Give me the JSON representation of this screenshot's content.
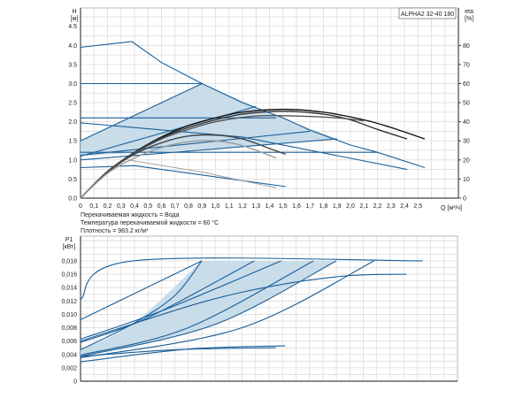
{
  "chart_data": [
    {
      "type": "line",
      "title": "ALPHA2 32-40 180",
      "xlabel": "Q [м³/ч]",
      "ylabel": "H [м]",
      "ylabel_parts": [
        "H",
        "[м]"
      ],
      "y2label_parts": [
        "eta",
        "[%]"
      ],
      "xlim": [
        0,
        2.8
      ],
      "ylim": [
        0,
        4.98
      ],
      "y2lim": [
        0,
        99.6
      ],
      "grid": true,
      "x_ticks": [
        "0",
        "0,1",
        "0,2",
        "0,3",
        "0,4",
        "0,5",
        "0,6",
        "0,7",
        "0,8",
        "0,9",
        "1,0",
        "1,1",
        "1,2",
        "1,3",
        "1,4",
        "1,5",
        "1,6",
        "1,7",
        "1,8",
        "1,9",
        "2,0",
        "2,1",
        "2,2",
        "2,3",
        "2,4",
        "2,5"
      ],
      "y_ticks": [
        "0.0",
        "0.5",
        "1.0",
        "1.5",
        "2.0",
        "2.5",
        "3.0",
        "3.5",
        "4.0",
        "4.5"
      ],
      "y2_ticks": [
        "0",
        "10",
        "20",
        "30",
        "40",
        "50",
        "60",
        "70",
        "80"
      ],
      "shaded_region": [
        [
          0,
          1.5
        ],
        [
          0.9,
          3.0
        ],
        [
          1.42,
          2.2
        ],
        [
          1.9,
          1.55
        ],
        [
          1.0,
          1.3
        ],
        [
          0,
          1.1
        ]
      ],
      "head_curves": [
        [
          [
            0,
            3.95
          ],
          [
            0.38,
            4.1
          ],
          [
            0.6,
            3.55
          ],
          [
            0.9,
            3.0
          ],
          [
            1.2,
            2.5
          ],
          [
            1.5,
            2.1
          ],
          [
            1.7,
            1.78
          ],
          [
            2.0,
            1.39
          ],
          [
            2.2,
            1.2
          ],
          [
            2.55,
            0.8
          ]
        ],
        [
          [
            0,
            3.0
          ],
          [
            0.9,
            3.0
          ]
        ],
        [
          [
            0,
            1.5
          ],
          [
            0.9,
            3.0
          ]
        ],
        [
          [
            0,
            2.1
          ],
          [
            1.45,
            2.1
          ]
        ],
        [
          [
            0,
            1.97
          ],
          [
            1.2,
            1.6
          ],
          [
            2.42,
            0.75
          ]
        ],
        [
          [
            0,
            1.1
          ],
          [
            1.3,
            2.4
          ]
        ],
        [
          [
            0,
            1.2
          ],
          [
            2.2,
            1.2
          ]
        ],
        [
          [
            0,
            1.0
          ],
          [
            1.9,
            1.55
          ]
        ],
        [
          [
            0,
            1.12
          ],
          [
            1.7,
            1.75
          ]
        ],
        [
          [
            0,
            0.8
          ],
          [
            0.4,
            0.85
          ],
          [
            1.52,
            0.3
          ]
        ]
      ],
      "eta_curves": [
        {
          "color": "#111111",
          "points": [
            [
              0,
              0
            ],
            [
              0.2,
              14
            ],
            [
              0.4,
              24
            ],
            [
              0.6,
              32
            ],
            [
              0.8,
              38
            ],
            [
              1.0,
              42
            ],
            [
              1.2,
              45
            ],
            [
              1.5,
              46.5
            ],
            [
              1.8,
              45
            ],
            [
              2.1,
              41
            ],
            [
              2.3,
              37
            ],
            [
              2.55,
              31
            ]
          ]
        },
        {
          "color": "#333333",
          "points": [
            [
              0,
              0
            ],
            [
              0.2,
              14
            ],
            [
              0.4,
              24
            ],
            [
              0.6,
              31.5
            ],
            [
              0.8,
              37
            ],
            [
              1.0,
              41
            ],
            [
              1.2,
              44
            ],
            [
              1.5,
              45.5
            ],
            [
              1.8,
              44
            ],
            [
              2.0,
              41
            ],
            [
              2.2,
              36
            ],
            [
              2.42,
              31
            ]
          ]
        },
        {
          "color": "#555555",
          "points": [
            [
              0,
              0
            ],
            [
              0.2,
              14
            ],
            [
              0.4,
              23.5
            ],
            [
              0.6,
              31
            ],
            [
              0.8,
              36
            ],
            [
              1.0,
              40
            ],
            [
              1.3,
              43
            ],
            [
              1.6,
              43
            ],
            [
              1.9,
              42
            ],
            [
              2.1,
              40.5
            ]
          ]
        },
        {
          "color": "#444444",
          "points": [
            [
              0,
              0
            ],
            [
              0.2,
              13.5
            ],
            [
              0.4,
              23
            ],
            [
              0.6,
              29
            ],
            [
              0.8,
              32.5
            ],
            [
              1.0,
              33
            ],
            [
              1.2,
              31
            ],
            [
              1.4,
              26
            ],
            [
              1.52,
              23
            ]
          ]
        },
        {
          "color": "#999999",
          "points": [
            [
              0,
              0
            ],
            [
              0.2,
              13
            ],
            [
              0.4,
              21
            ],
            [
              0.6,
              26.5
            ],
            [
              0.8,
              29.5
            ],
            [
              1.0,
              30
            ],
            [
              1.2,
              27.5
            ],
            [
              1.45,
              21
            ]
          ]
        }
      ],
      "gray_curve": [
        [
          0.35,
          1.0
        ],
        [
          0.9,
          0.68
        ],
        [
          1.45,
          0.27
        ]
      ]
    },
    {
      "type": "line",
      "ylabel_parts": [
        "P1",
        "[кВт]"
      ],
      "xlim": [
        0,
        2.8
      ],
      "ylim": [
        0,
        0.0217
      ],
      "grid": true,
      "y_ticks": [
        "0",
        "0,002",
        "0,004",
        "0,006",
        "0,008",
        "0,010",
        "0,012",
        "0,014",
        "0,016",
        "0,018"
      ],
      "shaded_region": [
        [
          0,
          0.0047
        ],
        [
          0.39,
          0.0086
        ],
        [
          0.9,
          0.018
        ],
        [
          1.9,
          0.018
        ],
        [
          1.2,
          0.0085
        ],
        [
          0,
          0.0037
        ]
      ],
      "power_curves": [
        [
          [
            0,
            0.0122
          ],
          [
            0.39,
            0.018
          ],
          [
            2.54,
            0.018
          ]
        ],
        [
          [
            0,
            0.0092
          ],
          [
            0.9,
            0.018
          ]
        ],
        [
          [
            0,
            0.0047
          ],
          [
            0.39,
            0.0086
          ],
          [
            0.7,
            0.0128
          ],
          [
            0.9,
            0.018
          ]
        ],
        [
          [
            0,
            0.0058
          ],
          [
            0.5,
            0.0095
          ],
          [
            1.29,
            0.018
          ]
        ],
        [
          [
            0,
            0.0063
          ],
          [
            0.6,
            0.0105
          ],
          [
            1.49,
            0.018
          ]
        ],
        [
          [
            0,
            0.0039
          ],
          [
            0.8,
            0.008
          ],
          [
            1.73,
            0.018
          ]
        ],
        [
          [
            0,
            0.0037
          ],
          [
            1.0,
            0.0085
          ],
          [
            1.9,
            0.018
          ]
        ],
        [
          [
            0,
            0.0035
          ],
          [
            1.2,
            0.008
          ],
          [
            2.18,
            0.018
          ]
        ],
        [
          [
            0,
            0.006
          ],
          [
            0.9,
            0.0118
          ],
          [
            1.5,
            0.0145
          ],
          [
            2.0,
            0.0158
          ],
          [
            2.42,
            0.016
          ]
        ],
        [
          [
            0,
            0.0029
          ],
          [
            0.8,
            0.0048
          ],
          [
            1.52,
            0.0053
          ]
        ],
        [
          [
            0,
            0.0037
          ],
          [
            0.7,
            0.0047
          ],
          [
            1.45,
            0.005
          ]
        ]
      ]
    }
  ],
  "notes": {
    "fluid": "Перекачиваемая жидкость = Вода",
    "temperature": "Температура перекачиваемой жидкости = 60 °C",
    "density": "Плотность = 983.2 кг/м³"
  },
  "colors": {
    "curve": "#1a5f99",
    "shade": "#c8dcea",
    "grid": "#dcdcdc",
    "axis": "#444444"
  }
}
